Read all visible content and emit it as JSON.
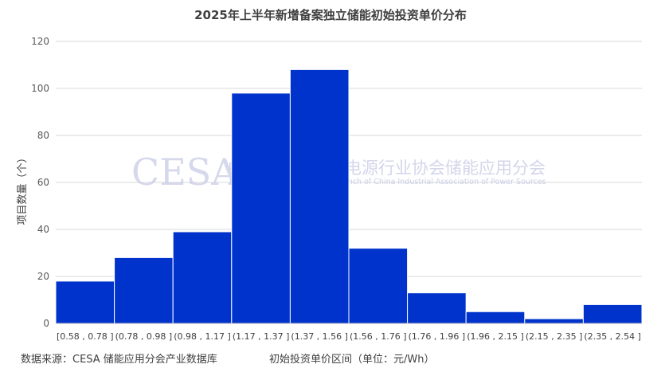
{
  "chart_data": {
    "type": "bar",
    "title": "2025年上半年新增备案独立储能初始投资单价分布",
    "categories": [
      "[0.58 , 0.78 ]",
      "(0.78 , 0.98 ]",
      "(0.98 , 1.17 ]",
      "(1.17 , 1.37 ]",
      "(1.37 , 1.56 ]",
      "(1.56 , 1.76 ]",
      "(1.76 , 1.96 ]",
      "(1.96 , 2.15 ]",
      "(2.15 , 2.35 ]",
      "(2.35 , 2.54 ]"
    ],
    "values": [
      18,
      28,
      39,
      98,
      108,
      32,
      13,
      5,
      2,
      8
    ],
    "xlabel": "初始投资单价区间（单位：元/Wh）",
    "ylabel": "项目数量（个）",
    "ylim": [
      0,
      120
    ],
    "yticks": [
      0,
      20,
      40,
      60,
      80,
      100,
      120
    ],
    "grid": true,
    "bar_color": "#0033cc",
    "bar_edge_color": "#ffffff"
  },
  "source_note": "数据来源：CESA 储能应用分会产业数据库",
  "watermark": {
    "logo": "CESA",
    "name_cn": "中国化学与物理电源行业协会储能应用分会",
    "name_en": "Energy Storage Application Branch of China Industrial Association of Power Sources"
  }
}
